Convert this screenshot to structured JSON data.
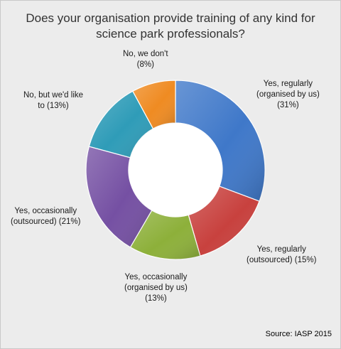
{
  "chart_data": {
    "type": "pie",
    "donut": true,
    "title": [
      "Does your organisation provide training of any kind for",
      "science park professionals?"
    ],
    "slices": [
      {
        "label": [
          "Yes, regularly",
          "(organised by us)",
          "(31%)"
        ],
        "value": 31,
        "color": "#3f78c9"
      },
      {
        "label": [
          "Yes, regularly",
          "(outsourced) (15%)"
        ],
        "value": 15,
        "color": "#c8413e"
      },
      {
        "label": [
          "Yes, occasionally",
          "(organised by us)",
          "(13%)"
        ],
        "value": 13,
        "color": "#8db03a"
      },
      {
        "label": [
          "Yes, occasionally",
          "(outsourced) (21%)"
        ],
        "value": 21,
        "color": "#7550a3"
      },
      {
        "label": [
          "No, but we'd like",
          "to (13%)"
        ],
        "value": 13,
        "color": "#2f9cb8"
      },
      {
        "label": [
          "No, we don't",
          "(8%)"
        ],
        "value": 8,
        "color": "#ef8b22"
      }
    ],
    "source": "Source: IASP 2015"
  }
}
